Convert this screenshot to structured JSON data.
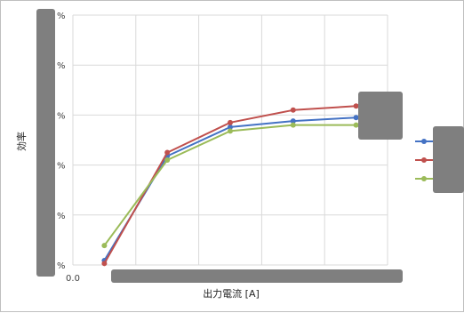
{
  "chart_data": {
    "type": "line",
    "title": "",
    "xlabel": "出力電流 [A]",
    "ylabel": "効率",
    "y_tick_labels": [
      "%",
      "%",
      "%",
      "%",
      "%",
      "%"
    ],
    "x_tick_labels": [
      "0.0"
    ],
    "grid": true,
    "legend": "right",
    "colors": {
      "grid": "#d9d9d9",
      "redaction": "#7f7f7f"
    },
    "x": [
      1,
      2,
      3,
      4,
      5
    ],
    "series": [
      {
        "color": "#4472c4",
        "values": [
          0.9,
          21.8,
          27.6,
          28.8,
          29.5
        ]
      },
      {
        "color": "#c0504d",
        "values": [
          0.3,
          22.5,
          28.5,
          31.0,
          31.8
        ]
      },
      {
        "color": "#9bbb59",
        "values": [
          3.9,
          21.0,
          26.8,
          28.0,
          28.0
        ]
      }
    ],
    "ylim": [
      0,
      50
    ],
    "xlim": [
      0.5,
      5.5
    ]
  }
}
